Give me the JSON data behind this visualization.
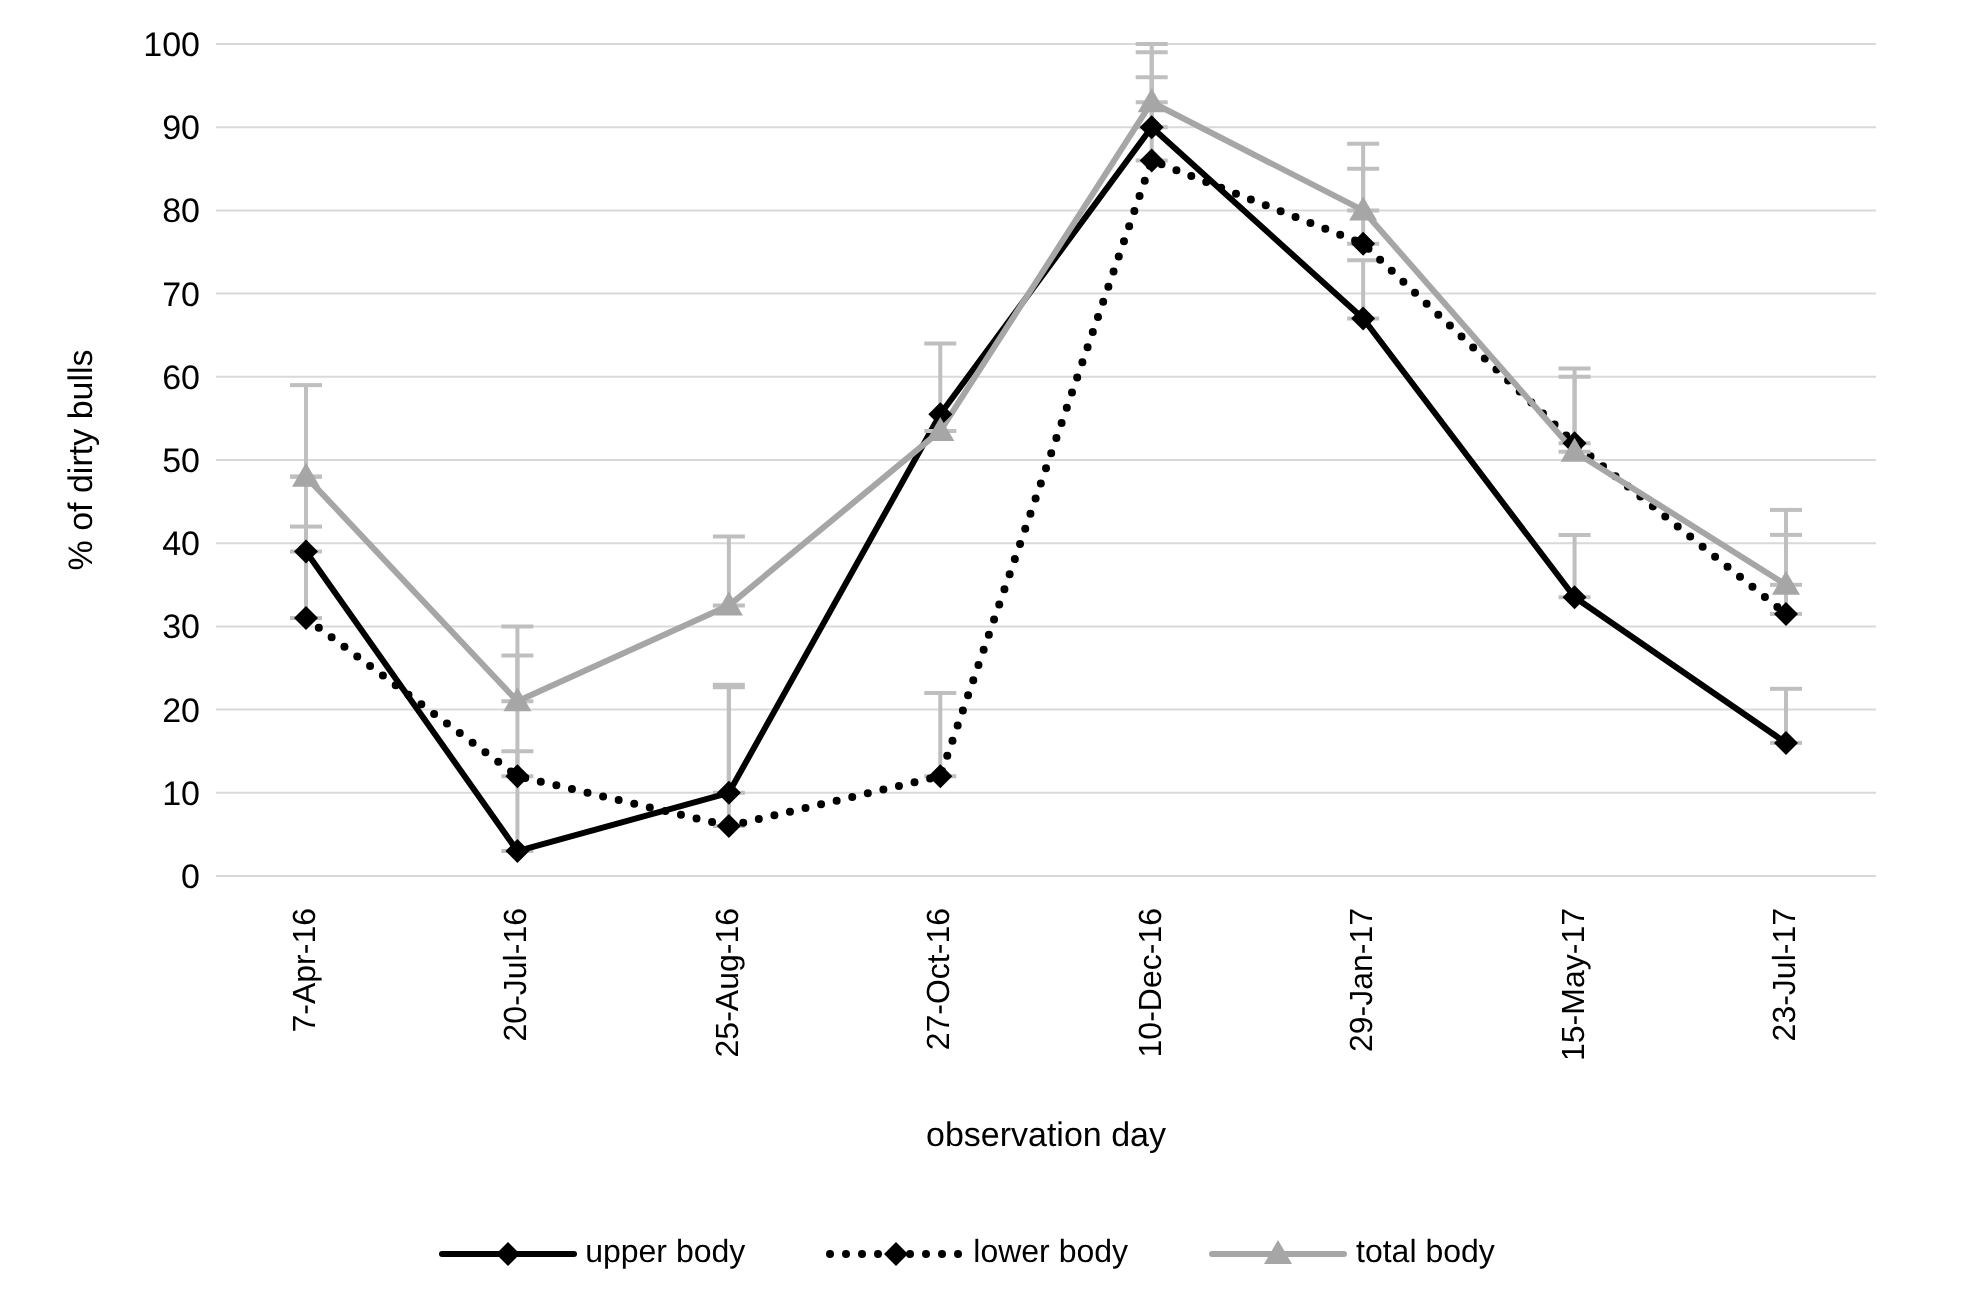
{
  "chart_data": {
    "type": "line",
    "xlabel": "observation day",
    "ylabel": "% of dirty bulls",
    "categories": [
      "7-Apr-16",
      "20-Jul-16",
      "25-Aug-16",
      "27-Oct-16",
      "10-Dec-16",
      "29-Jan-17",
      "15-May-17",
      "23-Jul-17"
    ],
    "series": [
      {
        "name": "upper body",
        "color": "#000000",
        "marker": "diamond",
        "line_style": "solid",
        "values": [
          39,
          3,
          10,
          55.5,
          90,
          67,
          33.5,
          16
        ],
        "errors": [
          [
            39,
            42
          ],
          [
            3,
            15
          ],
          [
            10,
            23
          ],
          null,
          [
            90,
            99
          ],
          [
            67,
            74
          ],
          [
            33.5,
            41
          ],
          [
            16,
            22.5
          ]
        ]
      },
      {
        "name": "lower body",
        "color": "#000000",
        "marker": "diamond",
        "line_style": "dotted",
        "values": [
          31,
          12,
          6,
          12,
          86,
          76,
          52,
          31.5
        ],
        "errors": [
          [
            31,
            48
          ],
          [
            12,
            26.5
          ],
          [
            6,
            22.7
          ],
          [
            12,
            22
          ],
          [
            86,
            96
          ],
          [
            76,
            85
          ],
          [
            52,
            60
          ],
          [
            31.5,
            41
          ]
        ]
      },
      {
        "name": "total body",
        "color": "#a6a6a6",
        "marker": "triangle",
        "line_style": "solid",
        "values": [
          48,
          21,
          32.5,
          53.5,
          93,
          80,
          51,
          35
        ],
        "errors": [
          [
            48,
            59
          ],
          [
            21,
            30
          ],
          [
            32.5,
            40.8
          ],
          [
            53.5,
            64
          ],
          [
            93,
            100
          ],
          [
            80,
            88
          ],
          [
            51,
            61
          ],
          [
            35,
            44
          ]
        ]
      }
    ],
    "ylim": [
      0,
      100
    ],
    "yticks": [
      0,
      10,
      20,
      30,
      40,
      50,
      60,
      70,
      80,
      90,
      100
    ],
    "grid": "y",
    "legend": "bottom"
  }
}
